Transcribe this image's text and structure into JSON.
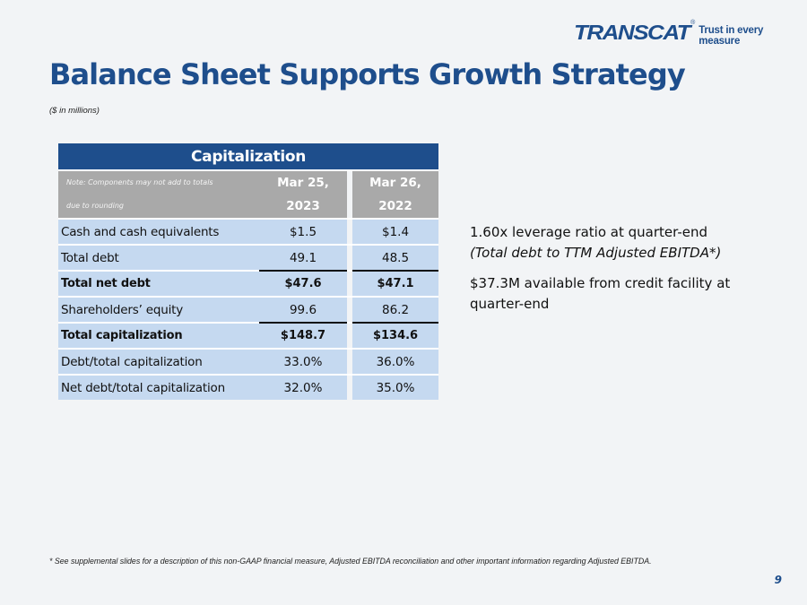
{
  "logo": {
    "name": "TRANSCAT",
    "registered": "®",
    "tagline": "Trust in every measure"
  },
  "title": "Balance Sheet Supports Growth Strategy",
  "subtitle": "($ in millions)",
  "table": {
    "title": "Capitalization",
    "note_line1": "Note: Components may not add to totals",
    "note_line2": "due to rounding",
    "col1": {
      "line1": "Mar 25,",
      "line2": "2023"
    },
    "col2": {
      "line1": "Mar 26,",
      "line2": "2022"
    },
    "rows": [
      {
        "label": "Cash and cash equivalents",
        "v1": "$1.5",
        "v2": "$1.4"
      },
      {
        "label": "Total debt",
        "v1": "49.1",
        "v2": "48.5"
      },
      {
        "label": "Total net debt",
        "v1": "$47.6",
        "v2": "$47.1"
      },
      {
        "label": "Shareholders’ equity",
        "v1": "99.6",
        "v2": "86.2"
      },
      {
        "label": "Total capitalization",
        "v1": "$148.7",
        "v2": "$134.6"
      },
      {
        "label": "Debt/total capitalization",
        "v1": "33.0%",
        "v2": "36.0%"
      },
      {
        "label": "Net debt/total capitalization",
        "v1": "32.0%",
        "v2": "35.0%"
      }
    ]
  },
  "highlights": {
    "leverage": "1.60x leverage ratio at quarter-end",
    "leverage_note": "(Total debt to TTM Adjusted EBITDA*)",
    "credit": "$37.3M available from credit facility at quarter-end"
  },
  "footnote": "* See supplemental slides for a description of this non-GAAP financial measure, Adjusted EBITDA reconciliation and other important information regarding Adjusted EBITDA.",
  "page_number": "9",
  "colors": {
    "brand_blue": "#1e4e8c",
    "row_fill": "#c5d9f0",
    "header_gray": "#a9a9a9"
  }
}
